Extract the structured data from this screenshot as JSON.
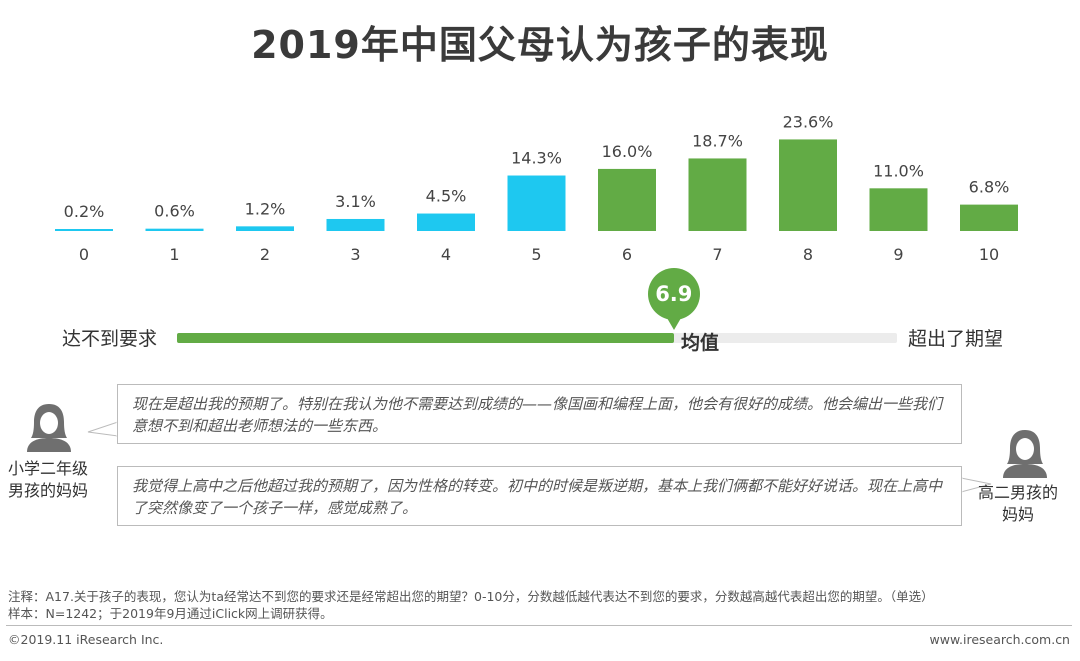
{
  "title": "2019年中国父母认为孩子的表现",
  "chart_data": {
    "type": "bar",
    "categories": [
      "0",
      "1",
      "2",
      "3",
      "4",
      "5",
      "6",
      "7",
      "8",
      "9",
      "10"
    ],
    "values": [
      0.2,
      0.6,
      1.2,
      3.1,
      4.5,
      14.3,
      16.0,
      18.7,
      23.6,
      11.0,
      6.8
    ],
    "value_labels": [
      "0.2%",
      "0.6%",
      "1.2%",
      "3.1%",
      "4.5%",
      "14.3%",
      "16.0%",
      "18.7%",
      "23.6%",
      "11.0%",
      "6.8%"
    ],
    "colors": [
      "#1ec8f0",
      "#1ec8f0",
      "#1ec8f0",
      "#1ec8f0",
      "#1ec8f0",
      "#1ec8f0",
      "#62ab45",
      "#62ab45",
      "#62ab45",
      "#62ab45",
      "#62ab45"
    ],
    "ylim": [
      0,
      25
    ]
  },
  "scale": {
    "left_label": "达不到要求",
    "mid_label": "均值",
    "right_label": "超出了期望",
    "mean_value": 6.9,
    "mean_text": "6.9",
    "scale_max": 10,
    "fill_color": "#62ab45"
  },
  "quotes": [
    {
      "text": "现在是超出我的预期了。特别在我认为他不需要达到成绩的——像国画和编程上面，他会有很好的成绩。他会编出一些我们意想不到和超出老师想法的一些东西。"
    },
    {
      "text": "我觉得上高中之后他超过我的预期了，因为性格的转变。初中的时候是叛逆期，基本上我们俩都不能好好说话。现在上高中了突然像变了一个孩子一样，感觉成熟了。"
    }
  ],
  "people": {
    "left_line1": "小学二年级",
    "left_line2": "男孩的妈妈",
    "right_line1": "高二男孩的",
    "right_line2": "妈妈"
  },
  "notes": {
    "line1": "注释：A17.关于孩子的表现，您认为ta经常达不到您的要求还是经常超出您的期望？0-10分，分数越低越代表达不到您的要求，分数越高越代表超出您的期望。（单选）",
    "line2": "样本：N=1242；于2019年9月通过iClick网上调研获得。"
  },
  "footer": {
    "copyright": "©2019.11 iResearch Inc.",
    "website": "www.iresearch.com.cn"
  }
}
